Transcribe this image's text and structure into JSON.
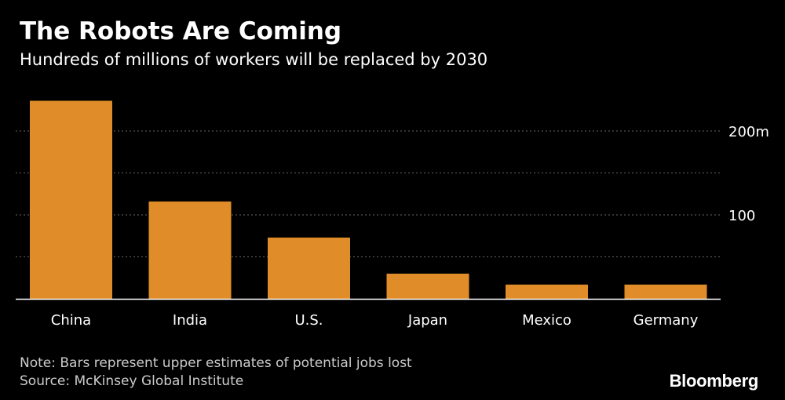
{
  "header": {
    "title": "The Robots Are Coming",
    "subtitle": "Hundreds of millions of workers will be replaced by 2030"
  },
  "footer": {
    "note": "Note: Bars represent upper estimates of potential jobs lost",
    "source": "Source: McKinsey Global Institute",
    "brand": "Bloomberg"
  },
  "colors": {
    "background": "#000000",
    "bar": "#e08c28",
    "gridline": "#666666",
    "axis": "#ffffff",
    "text": "#ffffff",
    "muted_text": "#cccccc"
  },
  "chart_data": {
    "type": "bar",
    "title": "The Robots Are Coming",
    "subtitle": "Hundreds of millions of workers will be replaced by 2030",
    "categories": [
      "China",
      "India",
      "U.S.",
      "Japan",
      "Mexico",
      "Germany"
    ],
    "values": [
      236,
      116,
      73,
      30,
      17,
      17
    ],
    "units": "millions of workers",
    "ylim": [
      0,
      250
    ],
    "yticks": [
      50,
      100,
      150,
      200
    ],
    "ytick_labels": [
      "",
      "100",
      "",
      "200m"
    ],
    "grid": true,
    "y_axis_side": "right"
  }
}
